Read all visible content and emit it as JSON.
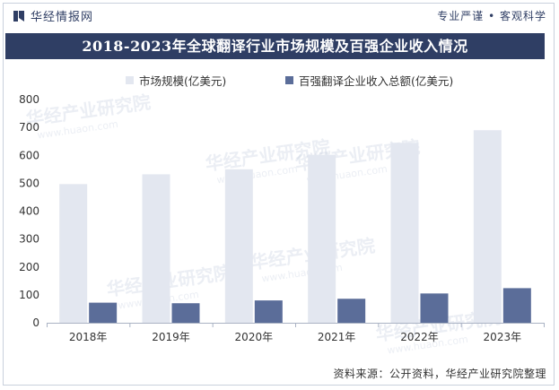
{
  "header": {
    "brand": "华经情报网",
    "slogan": "专业严谨 • 客观科学"
  },
  "chart_data": {
    "type": "bar",
    "title": "2018-2023年全球翻译行业市场规模及百强企业收入情况",
    "categories": [
      "2018年",
      "2019年",
      "2020年",
      "2021年",
      "2022年",
      "2023年"
    ],
    "series": [
      {
        "name": "市场规模(亿美元)",
        "color": "#e3e7f0",
        "values": [
          497,
          532,
          550,
          602,
          645,
          690
        ]
      },
      {
        "name": "百强翻译企业收入总额(亿美元)",
        "color": "#5b6d99",
        "values": [
          72,
          70,
          80,
          86,
          105,
          124
        ]
      }
    ],
    "yticks": [
      "0",
      "100",
      "200",
      "300",
      "400",
      "500",
      "600",
      "700",
      "800"
    ],
    "ylim": [
      0,
      800
    ],
    "legend": "top",
    "grid": false
  },
  "footer": {
    "source": "资料来源：公开资料，华经产业研究院整理"
  },
  "watermark": {
    "cn": "华经产业研究院",
    "en": "www.huaon.com"
  },
  "colors": {
    "brand_navy": "#2f3e64",
    "bar_light": "#e3e7f0",
    "bar_dark": "#5b6d99"
  }
}
